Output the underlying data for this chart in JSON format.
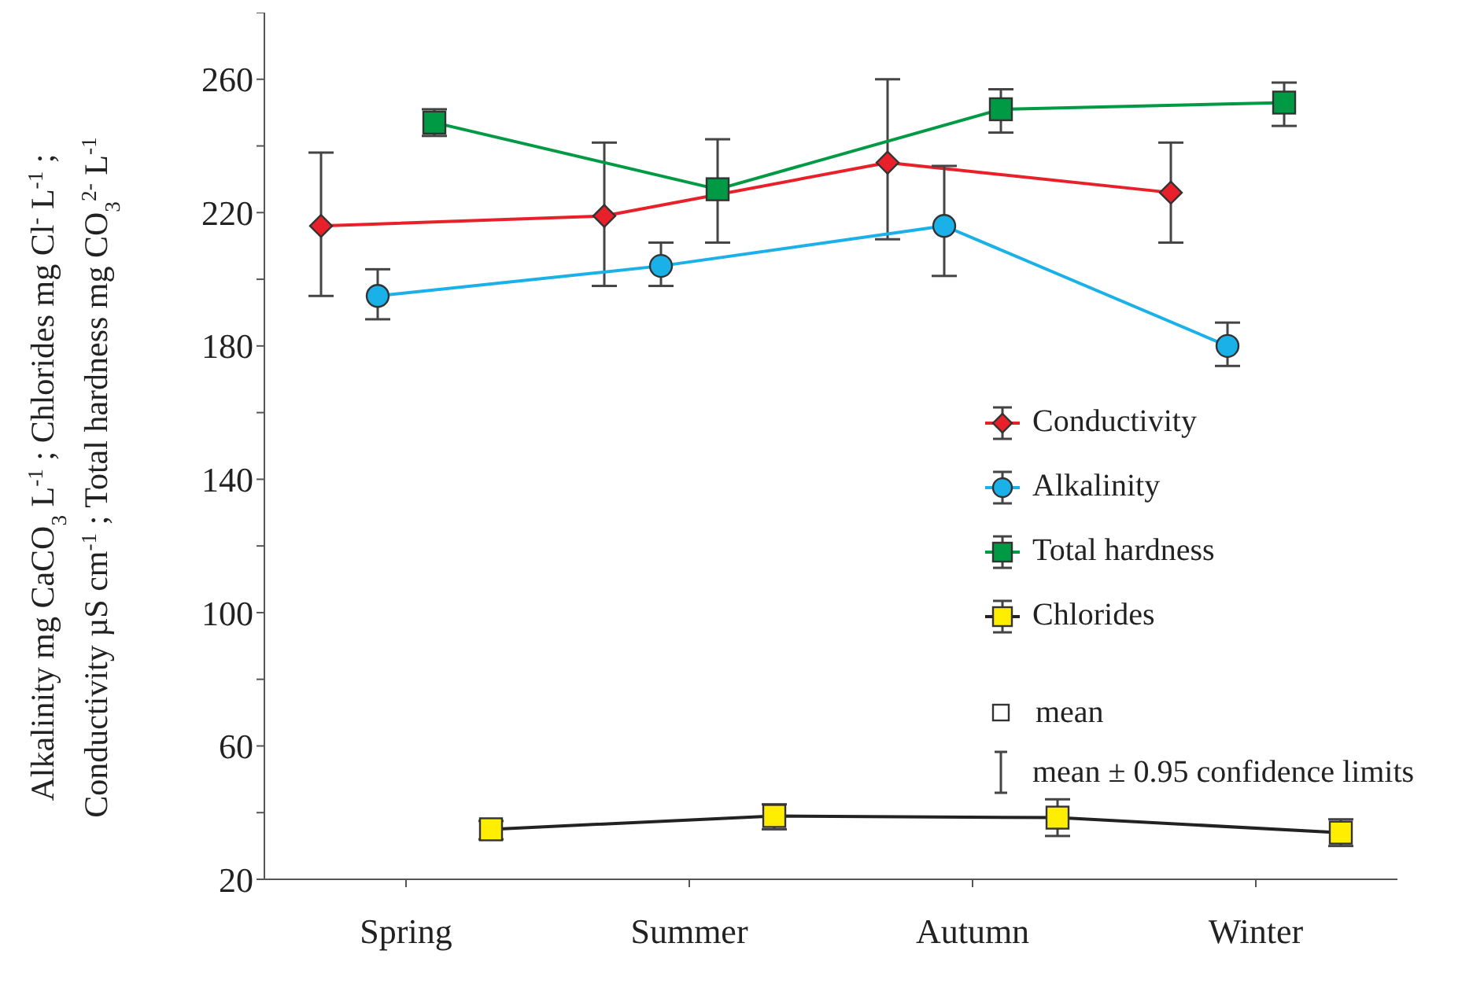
{
  "chart_data": {
    "type": "line",
    "ylabel": "Alkalinity mg CaCO$_{3}$ L$^{-1}$ ; Chlorides mg Cl$^{-}$ L$^{-1}$ ;\nConductivity µS cm$^{-1}$ ; Total hardness mg CO$_{3}$$^{2-}$ L$^{-1}$",
    "categories": [
      "Spring",
      "Summer",
      "Autumn",
      "Winter"
    ],
    "ylim": [
      20,
      280
    ],
    "yticks": [
      20,
      {
        "value": 40,
        "label": null
      },
      60,
      {
        "value": 80,
        "label": null
      },
      100,
      {
        "value": 120,
        "label": null
      },
      140,
      {
        "value": 160,
        "label": null
      },
      180,
      {
        "value": 200,
        "label": null
      },
      220,
      {
        "value": 240,
        "label": null
      },
      260,
      {
        "value": 280,
        "label": null
      }
    ],
    "grid": false,
    "legend": "right",
    "series": [
      {
        "name": "Conductivity",
        "color": "#e8202a",
        "marker": "diamond",
        "values": [
          216,
          219,
          235,
          226
        ],
        "errors": [
          [
            195,
            238
          ],
          [
            198,
            241
          ],
          [
            212,
            260
          ],
          [
            211,
            241
          ]
        ]
      },
      {
        "name": "Alkalinity",
        "color": "#1ab0e8",
        "marker": "circle",
        "values": [
          195,
          204,
          216,
          180
        ],
        "errors": [
          [
            188,
            203
          ],
          [
            198,
            211
          ],
          [
            201,
            234
          ],
          [
            174,
            187
          ]
        ]
      },
      {
        "name": "Total hardness",
        "color": "#009a44",
        "marker": "square",
        "values": [
          247,
          227,
          251,
          253
        ],
        "errors": [
          [
            243,
            251
          ],
          [
            211,
            242
          ],
          [
            244,
            257
          ],
          [
            246,
            259
          ]
        ]
      },
      {
        "name": "Chlorides",
        "color": "#222222",
        "colors": [
          "#ffee00",
          "#ffee00",
          "#ffee00",
          "#ffee00"
        ],
        "marker": "square",
        "values": [
          35,
          39,
          38.5,
          34
        ],
        "errors": [
          [
            32,
            37.5
          ],
          [
            35,
            42.5
          ],
          [
            33,
            44
          ],
          [
            30,
            38
          ]
        ]
      }
    ],
    "annotations": [
      "mean",
      "mean ± 0.95 confidence limits"
    ]
  }
}
